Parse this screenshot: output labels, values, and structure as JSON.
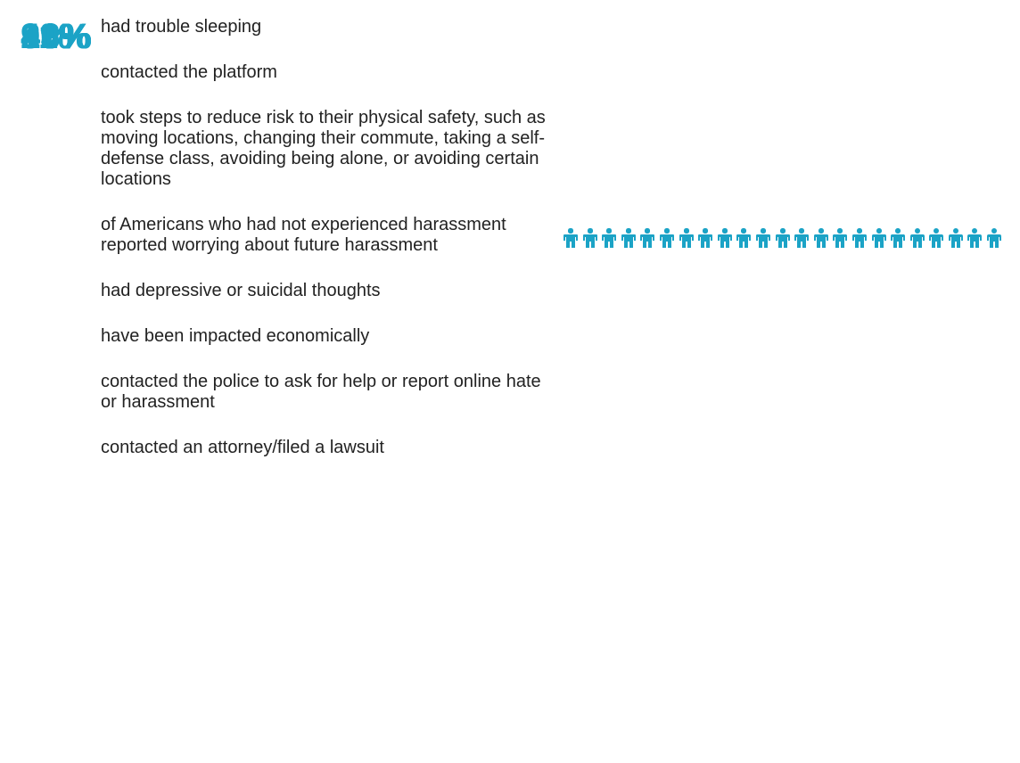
{
  "chart_data": {
    "type": "pictogram",
    "categories": [
      "had trouble sleeping",
      "contacted the platform",
      "took steps to reduce risk to their physical safety, such as moving locations, changing their commute, taking a self-defense class, avoiding being alone, or avoiding certain locations",
      "of Americans who had not experienced harassment reported worrying about future harassment",
      "had depressive or suicidal thoughts",
      "have been impacted economically",
      "contacted the police to ask for help or report online hate or harassment",
      "contacted an attorney/filed a lawsuit"
    ],
    "values": [
      23,
      18,
      16,
      13,
      11,
      9,
      8,
      4
    ],
    "value_labels": [
      "23%",
      "18%",
      "16%",
      "13%",
      "11%",
      "9%",
      "8%",
      "4%"
    ],
    "color": "#1ba3c6"
  }
}
